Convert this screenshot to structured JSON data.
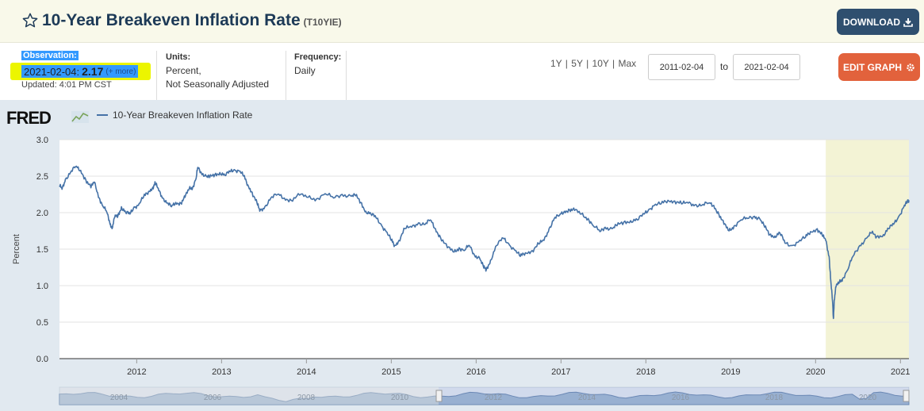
{
  "header": {
    "title": "10-Year Breakeven Inflation Rate",
    "series_code": "(T10YIE)",
    "download_label": "DOWNLOAD",
    "icons": {
      "favorite": "star-outline-icon",
      "download": "download-icon"
    }
  },
  "meta": {
    "observation_label": "Observation:",
    "observation_date": "2021-02-04:",
    "observation_value": "2.17",
    "observation_more": "(+ more)",
    "updated": "Updated: 4:01 PM CST",
    "units_label": "Units:",
    "units_line1": "Percent,",
    "units_line2": "Not Seasonally Adjusted",
    "frequency_label": "Frequency:",
    "frequency_value": "Daily",
    "ranges": [
      "1Y",
      "5Y",
      "10Y",
      "Max"
    ],
    "start_date": "2011-02-04",
    "to_label": "to",
    "end_date": "2021-02-04",
    "edit_label": "EDIT GRAPH",
    "icons": {
      "edit": "gear-icon"
    }
  },
  "colors": {
    "series": "#4572a7",
    "recession": "#f3f3d5",
    "download_button": "#2f4f6f",
    "edit_button": "#e2623c",
    "highlight": "#ecf500"
  },
  "chart_data": {
    "type": "line",
    "brand": "FRED",
    "legend": "10-Year Breakeven Inflation Rate",
    "ylabel": "Percent",
    "ylim": [
      0,
      3.0
    ],
    "yticks": [
      "0.0",
      "0.5",
      "1.0",
      "1.5",
      "2.0",
      "2.5",
      "3.0"
    ],
    "xlim": [
      2011.09,
      2021.1
    ],
    "xticks": [
      "2012",
      "2013",
      "2014",
      "2015",
      "2016",
      "2017",
      "2018",
      "2019",
      "2020",
      "2021"
    ],
    "grid": "horizontal",
    "recession_shading": [
      2020.12,
      2021.1
    ],
    "navigator_labels": [
      "2004",
      "2006",
      "2008",
      "2010",
      "2012",
      "2014",
      "2016",
      "2018",
      "2020"
    ],
    "series": [
      {
        "name": "10-Year Breakeven Inflation Rate",
        "points": [
          [
            2011.09,
            2.37
          ],
          [
            2011.12,
            2.32
          ],
          [
            2011.16,
            2.46
          ],
          [
            2011.22,
            2.55
          ],
          [
            2011.28,
            2.63
          ],
          [
            2011.34,
            2.58
          ],
          [
            2011.4,
            2.45
          ],
          [
            2011.46,
            2.34
          ],
          [
            2011.5,
            2.42
          ],
          [
            2011.56,
            2.2
          ],
          [
            2011.6,
            2.09
          ],
          [
            2011.65,
            2.0
          ],
          [
            2011.68,
            1.88
          ],
          [
            2011.71,
            1.78
          ],
          [
            2011.74,
            1.93
          ],
          [
            2011.78,
            1.96
          ],
          [
            2011.82,
            2.08
          ],
          [
            2011.87,
            2.0
          ],
          [
            2011.92,
            1.98
          ],
          [
            2011.97,
            2.08
          ],
          [
            2012.02,
            2.1
          ],
          [
            2012.08,
            2.21
          ],
          [
            2012.14,
            2.29
          ],
          [
            2012.19,
            2.35
          ],
          [
            2012.22,
            2.4
          ],
          [
            2012.26,
            2.3
          ],
          [
            2012.31,
            2.2
          ],
          [
            2012.36,
            2.13
          ],
          [
            2012.41,
            2.08
          ],
          [
            2012.46,
            2.14
          ],
          [
            2012.52,
            2.13
          ],
          [
            2012.57,
            2.21
          ],
          [
            2012.62,
            2.33
          ],
          [
            2012.66,
            2.35
          ],
          [
            2012.7,
            2.47
          ],
          [
            2012.72,
            2.62
          ],
          [
            2012.76,
            2.55
          ],
          [
            2012.82,
            2.5
          ],
          [
            2012.86,
            2.48
          ],
          [
            2012.92,
            2.52
          ],
          [
            2012.98,
            2.55
          ],
          [
            2013.04,
            2.51
          ],
          [
            2013.1,
            2.56
          ],
          [
            2013.15,
            2.59
          ],
          [
            2013.21,
            2.57
          ],
          [
            2013.26,
            2.5
          ],
          [
            2013.31,
            2.38
          ],
          [
            2013.36,
            2.28
          ],
          [
            2013.42,
            2.12
          ],
          [
            2013.45,
            2.02
          ],
          [
            2013.51,
            2.08
          ],
          [
            2013.58,
            2.2
          ],
          [
            2013.66,
            2.25
          ],
          [
            2013.74,
            2.2
          ],
          [
            2013.82,
            2.17
          ],
          [
            2013.92,
            2.24
          ],
          [
            2014.02,
            2.21
          ],
          [
            2014.12,
            2.19
          ],
          [
            2014.22,
            2.26
          ],
          [
            2014.32,
            2.2
          ],
          [
            2014.42,
            2.25
          ],
          [
            2014.52,
            2.23
          ],
          [
            2014.58,
            2.23
          ],
          [
            2014.64,
            2.14
          ],
          [
            2014.7,
            2.02
          ],
          [
            2014.76,
            1.98
          ],
          [
            2014.82,
            1.93
          ],
          [
            2014.88,
            1.84
          ],
          [
            2014.94,
            1.74
          ],
          [
            2015.0,
            1.62
          ],
          [
            2015.04,
            1.55
          ],
          [
            2015.09,
            1.62
          ],
          [
            2015.16,
            1.78
          ],
          [
            2015.24,
            1.8
          ],
          [
            2015.32,
            1.86
          ],
          [
            2015.4,
            1.84
          ],
          [
            2015.46,
            1.9
          ],
          [
            2015.52,
            1.78
          ],
          [
            2015.58,
            1.66
          ],
          [
            2015.66,
            1.52
          ],
          [
            2015.74,
            1.46
          ],
          [
            2015.8,
            1.52
          ],
          [
            2015.86,
            1.48
          ],
          [
            2015.92,
            1.55
          ],
          [
            2015.98,
            1.42
          ],
          [
            2016.04,
            1.38
          ],
          [
            2016.09,
            1.24
          ],
          [
            2016.12,
            1.22
          ],
          [
            2016.17,
            1.35
          ],
          [
            2016.24,
            1.55
          ],
          [
            2016.32,
            1.65
          ],
          [
            2016.38,
            1.58
          ],
          [
            2016.46,
            1.48
          ],
          [
            2016.52,
            1.4
          ],
          [
            2016.58,
            1.45
          ],
          [
            2016.66,
            1.48
          ],
          [
            2016.74,
            1.57
          ],
          [
            2016.8,
            1.62
          ],
          [
            2016.86,
            1.78
          ],
          [
            2016.92,
            1.92
          ],
          [
            2016.98,
            1.96
          ],
          [
            2017.04,
            2.02
          ],
          [
            2017.1,
            2.04
          ],
          [
            2017.16,
            2.03
          ],
          [
            2017.24,
            1.98
          ],
          [
            2017.32,
            1.92
          ],
          [
            2017.38,
            1.82
          ],
          [
            2017.46,
            1.74
          ],
          [
            2017.52,
            1.8
          ],
          [
            2017.6,
            1.78
          ],
          [
            2017.66,
            1.82
          ],
          [
            2017.74,
            1.87
          ],
          [
            2017.82,
            1.89
          ],
          [
            2017.9,
            1.9
          ],
          [
            2017.98,
            1.98
          ],
          [
            2018.04,
            2.05
          ],
          [
            2018.1,
            2.1
          ],
          [
            2018.18,
            2.12
          ],
          [
            2018.26,
            2.17
          ],
          [
            2018.34,
            2.16
          ],
          [
            2018.42,
            2.12
          ],
          [
            2018.5,
            2.13
          ],
          [
            2018.58,
            2.11
          ],
          [
            2018.66,
            2.1
          ],
          [
            2018.74,
            2.13
          ],
          [
            2018.8,
            2.1
          ],
          [
            2018.86,
            1.98
          ],
          [
            2018.92,
            1.84
          ],
          [
            2018.98,
            1.75
          ],
          [
            2019.04,
            1.82
          ],
          [
            2019.12,
            1.9
          ],
          [
            2019.2,
            1.92
          ],
          [
            2019.28,
            1.95
          ],
          [
            2019.34,
            1.92
          ],
          [
            2019.4,
            1.8
          ],
          [
            2019.46,
            1.7
          ],
          [
            2019.52,
            1.68
          ],
          [
            2019.58,
            1.72
          ],
          [
            2019.64,
            1.58
          ],
          [
            2019.72,
            1.55
          ],
          [
            2019.8,
            1.6
          ],
          [
            2019.88,
            1.66
          ],
          [
            2019.94,
            1.74
          ],
          [
            2020.02,
            1.78
          ],
          [
            2020.08,
            1.68
          ],
          [
            2020.12,
            1.62
          ],
          [
            2020.16,
            1.4
          ],
          [
            2020.18,
            1.05
          ],
          [
            2020.2,
            0.78
          ],
          [
            2020.21,
            0.55
          ],
          [
            2020.22,
            0.8
          ],
          [
            2020.24,
            0.98
          ],
          [
            2020.28,
            1.05
          ],
          [
            2020.32,
            1.1
          ],
          [
            2020.38,
            1.22
          ],
          [
            2020.44,
            1.4
          ],
          [
            2020.52,
            1.55
          ],
          [
            2020.6,
            1.65
          ],
          [
            2020.66,
            1.72
          ],
          [
            2020.72,
            1.67
          ],
          [
            2020.8,
            1.7
          ],
          [
            2020.86,
            1.78
          ],
          [
            2020.92,
            1.84
          ],
          [
            2020.98,
            1.95
          ],
          [
            2021.04,
            2.08
          ],
          [
            2021.08,
            2.14
          ],
          [
            2021.1,
            2.17
          ]
        ]
      }
    ]
  }
}
